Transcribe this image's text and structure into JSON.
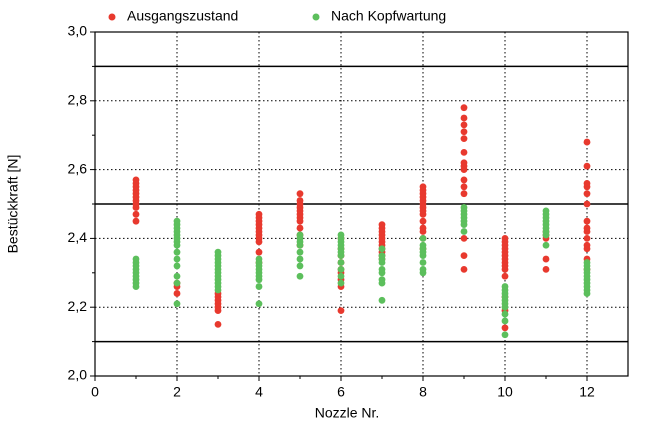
{
  "chart_data": {
    "type": "scatter",
    "x_label": "Nozzle Nr.",
    "y_label": "Bestückkraft [N]",
    "xlim": [
      0,
      13
    ],
    "ylim": [
      2.0,
      3.0
    ],
    "xticks": [
      0,
      2,
      4,
      6,
      8,
      10,
      12
    ],
    "yticks": [
      {
        "value": 2.0,
        "label": "2,0"
      },
      {
        "value": 2.2,
        "label": "2,2"
      },
      {
        "value": 2.4,
        "label": "2,4"
      },
      {
        "value": 2.6,
        "label": "2,6"
      },
      {
        "value": 2.8,
        "label": "2,8"
      },
      {
        "value": 3.0,
        "label": "3,0"
      }
    ],
    "grid": true,
    "hlines": [
      2.1,
      2.5,
      2.9
    ],
    "legend": "top",
    "series": [
      {
        "name": "Ausgangszustand",
        "color": "#e8392e",
        "x": [
          1,
          1,
          1,
          1,
          1,
          1,
          1,
          1,
          1,
          1,
          1,
          2,
          2,
          2,
          3,
          3,
          3,
          3,
          3,
          3,
          3,
          4,
          4,
          4,
          4,
          4,
          4,
          4,
          4,
          4,
          4,
          4,
          5,
          5,
          5,
          5,
          5,
          5,
          5,
          5,
          5,
          5,
          5,
          6,
          6,
          6,
          6,
          6,
          6,
          6,
          6,
          6,
          7,
          7,
          7,
          7,
          7,
          7,
          7,
          7,
          7,
          7,
          7,
          8,
          8,
          8,
          8,
          8,
          8,
          8,
          8,
          8,
          8,
          8,
          8,
          8,
          8,
          9,
          9,
          9,
          9,
          9,
          9,
          9,
          9,
          9,
          9,
          9,
          9,
          9,
          9,
          9,
          10,
          10,
          10,
          10,
          10,
          10,
          10,
          10,
          10,
          10,
          10,
          10,
          10,
          10,
          11,
          11,
          11,
          11,
          11,
          12,
          12,
          12,
          12,
          12,
          12,
          12,
          12,
          12,
          12,
          12,
          12,
          12,
          12
        ],
        "y": [
          2.45,
          2.47,
          2.49,
          2.5,
          2.51,
          2.52,
          2.53,
          2.54,
          2.55,
          2.56,
          2.57,
          2.24,
          2.26,
          2.27,
          2.15,
          2.19,
          2.2,
          2.21,
          2.22,
          2.23,
          2.24,
          2.33,
          2.36,
          2.39,
          2.4,
          2.41,
          2.42,
          2.43,
          2.44,
          2.45,
          2.46,
          2.47,
          2.38,
          2.41,
          2.43,
          2.45,
          2.46,
          2.47,
          2.48,
          2.49,
          2.5,
          2.51,
          2.53,
          2.19,
          2.26,
          2.28,
          2.3,
          2.31,
          2.33,
          2.35,
          2.37,
          2.4,
          2.34,
          2.35,
          2.36,
          2.37,
          2.38,
          2.39,
          2.4,
          2.41,
          2.42,
          2.43,
          2.44,
          2.37,
          2.4,
          2.42,
          2.43,
          2.45,
          2.47,
          2.48,
          2.49,
          2.5,
          2.51,
          2.52,
          2.53,
          2.54,
          2.55,
          2.31,
          2.35,
          2.4,
          2.53,
          2.55,
          2.57,
          2.6,
          2.61,
          2.62,
          2.65,
          2.69,
          2.71,
          2.73,
          2.75,
          2.78,
          2.14,
          2.19,
          2.23,
          2.29,
          2.31,
          2.32,
          2.33,
          2.34,
          2.35,
          2.36,
          2.37,
          2.38,
          2.39,
          2.4,
          2.31,
          2.34,
          2.4,
          2.41,
          2.42,
          2.31,
          2.34,
          2.37,
          2.38,
          2.4,
          2.42,
          2.43,
          2.45,
          2.5,
          2.53,
          2.55,
          2.56,
          2.61,
          2.68
        ]
      },
      {
        "name": "Nach Kopfwartung",
        "color": "#5cbf5c",
        "x": [
          1,
          1,
          1,
          1,
          1,
          1,
          1,
          1,
          1,
          2,
          2,
          2,
          2,
          2,
          2,
          2,
          2,
          2,
          2,
          2,
          2,
          2,
          2,
          3,
          3,
          3,
          3,
          3,
          3,
          3,
          3,
          3,
          3,
          3,
          3,
          4,
          4,
          4,
          4,
          4,
          4,
          4,
          4,
          4,
          5,
          5,
          5,
          5,
          5,
          5,
          5,
          5,
          6,
          6,
          6,
          6,
          6,
          6,
          6,
          6,
          6,
          6,
          6,
          7,
          7,
          7,
          7,
          7,
          7,
          7,
          7,
          7,
          8,
          8,
          8,
          8,
          8,
          8,
          8,
          8,
          9,
          9,
          9,
          9,
          9,
          9,
          9,
          10,
          10,
          10,
          10,
          10,
          10,
          10,
          10,
          10,
          10,
          11,
          11,
          11,
          11,
          11,
          11,
          11,
          11,
          11,
          12,
          12,
          12,
          12,
          12,
          12,
          12,
          12,
          12,
          12
        ],
        "y": [
          2.26,
          2.27,
          2.28,
          2.29,
          2.3,
          2.31,
          2.32,
          2.33,
          2.34,
          2.21,
          2.27,
          2.29,
          2.32,
          2.34,
          2.36,
          2.38,
          2.39,
          2.4,
          2.41,
          2.42,
          2.43,
          2.44,
          2.45,
          2.25,
          2.26,
          2.27,
          2.28,
          2.29,
          2.3,
          2.31,
          2.32,
          2.33,
          2.34,
          2.35,
          2.36,
          2.21,
          2.26,
          2.28,
          2.29,
          2.3,
          2.31,
          2.32,
          2.33,
          2.34,
          2.29,
          2.32,
          2.34,
          2.36,
          2.38,
          2.39,
          2.4,
          2.41,
          2.27,
          2.29,
          2.31,
          2.33,
          2.35,
          2.36,
          2.37,
          2.38,
          2.39,
          2.4,
          2.41,
          2.22,
          2.27,
          2.28,
          2.3,
          2.31,
          2.33,
          2.34,
          2.35,
          2.37,
          2.3,
          2.31,
          2.33,
          2.35,
          2.36,
          2.37,
          2.38,
          2.4,
          2.42,
          2.44,
          2.45,
          2.46,
          2.47,
          2.48,
          2.49,
          2.12,
          2.16,
          2.18,
          2.2,
          2.21,
          2.22,
          2.23,
          2.24,
          2.25,
          2.26,
          2.38,
          2.41,
          2.42,
          2.43,
          2.44,
          2.45,
          2.46,
          2.47,
          2.48,
          2.24,
          2.25,
          2.26,
          2.27,
          2.28,
          2.29,
          2.3,
          2.31,
          2.32,
          2.33
        ]
      }
    ]
  }
}
